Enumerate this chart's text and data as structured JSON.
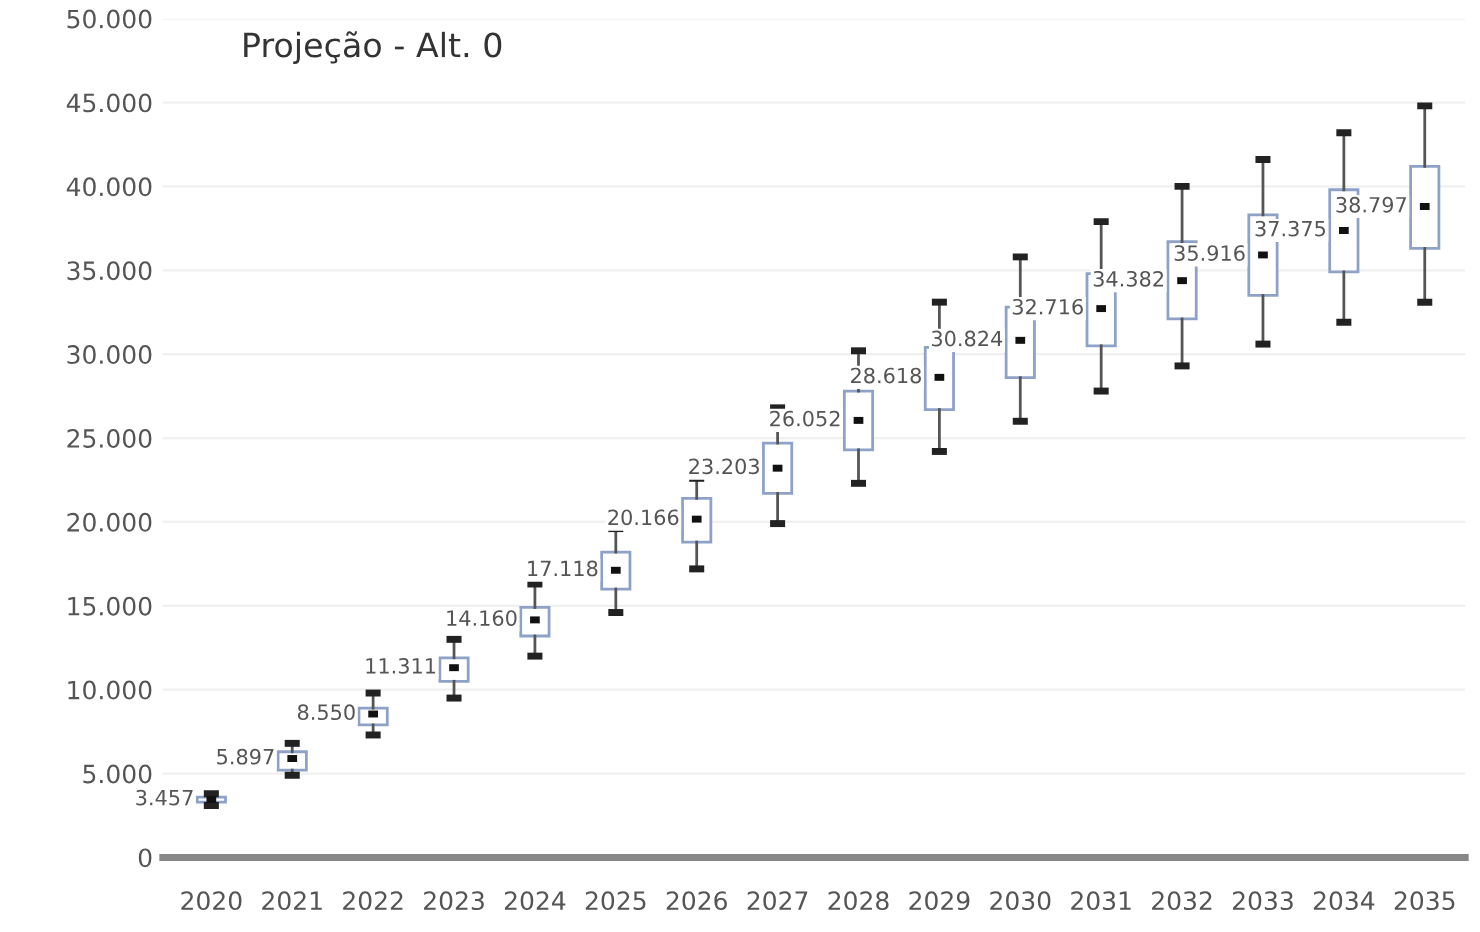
{
  "chart_data": {
    "type": "box",
    "title": "Projeção - Alt. 0",
    "categories": [
      "2020",
      "2021",
      "2022",
      "2023",
      "2024",
      "2025",
      "2026",
      "2027",
      "2028",
      "2029",
      "2030",
      "2031",
      "2032",
      "2033",
      "2034",
      "2035"
    ],
    "boxes": [
      {
        "low": 3100,
        "q1": 3300,
        "median": 3457,
        "q3": 3600,
        "high": 3800
      },
      {
        "low": 4900,
        "q1": 5200,
        "median": 5897,
        "q3": 6300,
        "high": 6800
      },
      {
        "low": 7300,
        "q1": 7900,
        "median": 8550,
        "q3": 8900,
        "high": 9800
      },
      {
        "low": 9500,
        "q1": 10500,
        "median": 11311,
        "q3": 11900,
        "high": 13000
      },
      {
        "low": 12000,
        "q1": 13200,
        "median": 14160,
        "q3": 14900,
        "high": 16300
      },
      {
        "low": 14600,
        "q1": 16000,
        "median": 17118,
        "q3": 18200,
        "high": 19600
      },
      {
        "low": 17200,
        "q1": 18800,
        "median": 20166,
        "q3": 21400,
        "high": 22600
      },
      {
        "low": 19900,
        "q1": 21700,
        "median": 23203,
        "q3": 24700,
        "high": 26800
      },
      {
        "low": 22300,
        "q1": 24300,
        "median": 26052,
        "q3": 27800,
        "high": 30200
      },
      {
        "low": 24200,
        "q1": 26700,
        "median": 28618,
        "q3": 30400,
        "high": 33100
      },
      {
        "low": 26000,
        "q1": 28600,
        "median": 30824,
        "q3": 32800,
        "high": 35800
      },
      {
        "low": 27800,
        "q1": 30500,
        "median": 32716,
        "q3": 34800,
        "high": 37900
      },
      {
        "low": 29300,
        "q1": 32100,
        "median": 34382,
        "q3": 36700,
        "high": 40000
      },
      {
        "low": 30600,
        "q1": 33500,
        "median": 35916,
        "q3": 38300,
        "high": 41600
      },
      {
        "low": 31900,
        "q1": 34900,
        "median": 37375,
        "q3": 39800,
        "high": 43200
      },
      {
        "low": 33100,
        "q1": 36300,
        "median": 38797,
        "q3": 41200,
        "high": 44800
      }
    ],
    "color": "#8ea2c8",
    "value_labels": [
      "3.457",
      "5.897",
      "8.550",
      "11.311",
      "14.160",
      "17.118",
      "20.166",
      "23.203",
      "26.052",
      "28.618",
      "30.824",
      "32.716",
      "34.382",
      "35.916",
      "37.375",
      "38.797"
    ],
    "ylim": [
      0,
      50000
    ],
    "yticks": [
      {
        "value": 0,
        "label": "0"
      },
      {
        "value": 5000,
        "label": "5.000"
      },
      {
        "value": 10000,
        "label": "10.000"
      },
      {
        "value": 15000,
        "label": "15.000"
      },
      {
        "value": 20000,
        "label": "20.000"
      },
      {
        "value": 25000,
        "label": "25.000"
      },
      {
        "value": 30000,
        "label": "30.000"
      },
      {
        "value": 35000,
        "label": "35.000"
      },
      {
        "value": 40000,
        "label": "40.000"
      },
      {
        "value": 45000,
        "label": "45.000"
      },
      {
        "value": 50000,
        "label": "50.000"
      }
    ],
    "grid": "y"
  }
}
